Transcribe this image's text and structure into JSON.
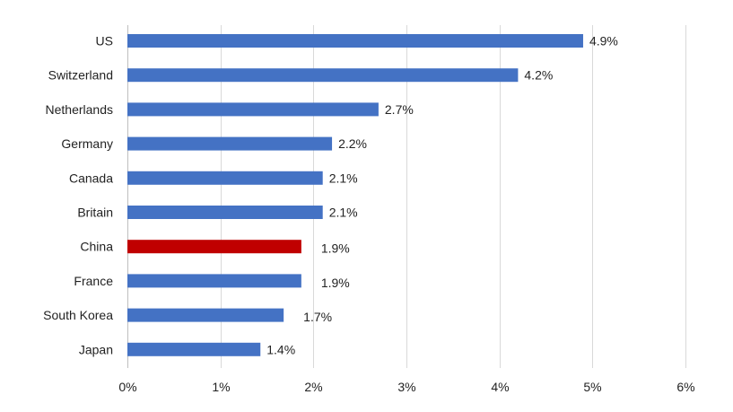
{
  "chart_data": {
    "type": "bar",
    "orientation": "horizontal",
    "categories": [
      "US",
      "Switzerland",
      "Netherlands",
      "Germany",
      "Canada",
      "Britain",
      "China",
      "France",
      "South Korea",
      "Japan"
    ],
    "values": [
      4.9,
      4.2,
      2.7,
      2.2,
      2.1,
      2.1,
      1.87,
      1.87,
      1.68,
      1.43
    ],
    "value_labels": [
      "4.9%",
      "4.2%",
      "2.7%",
      "2.2%",
      "2.1%",
      "2.1%",
      "1.9%",
      "1.9%",
      "1.7%",
      "1.4%"
    ],
    "xlim": [
      0,
      6
    ],
    "x_ticks": [
      0,
      1,
      2,
      3,
      4,
      5,
      6
    ],
    "x_tick_labels": [
      "0%",
      "1%",
      "2%",
      "3%",
      "4%",
      "5%",
      "6%"
    ],
    "grid": "vertical",
    "legend": "none",
    "colors": {
      "default": "#4472C4",
      "highlight": "#C00000",
      "highlight_category": "China"
    }
  }
}
